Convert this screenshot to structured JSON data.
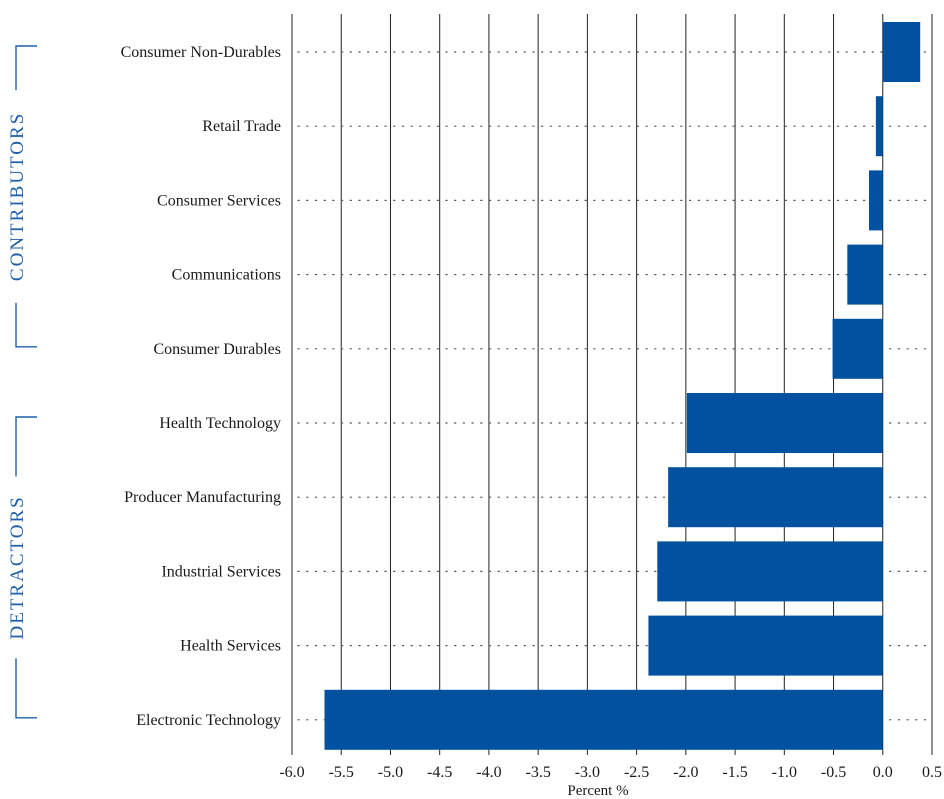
{
  "colors": {
    "bar": "#0052A0",
    "group_label": "#1F5FA8",
    "gridline": "#222222",
    "dotline": "#555555",
    "text": "#1a1a1a"
  },
  "chart_data": {
    "type": "bar",
    "orientation": "horizontal",
    "categories": [
      "Consumer Non-Durables",
      "Retail Trade",
      "Consumer Services",
      "Communications",
      "Consumer Durables",
      "Health Technology",
      "Producer Manufacturing",
      "Industrial Services",
      "Health Services",
      "Electronic Technology"
    ],
    "values": [
      0.38,
      -0.07,
      -0.14,
      -0.36,
      -0.51,
      -1.99,
      -2.18,
      -2.29,
      -2.38,
      -5.67
    ],
    "title": "",
    "xlabel": "Percent %",
    "ylabel": "",
    "xlim": [
      -6.0,
      0.5
    ],
    "xticks": [
      -6.0,
      -5.5,
      -5.0,
      -4.5,
      -4.0,
      -3.5,
      -3.0,
      -2.5,
      -2.0,
      -1.5,
      -1.0,
      -0.5,
      0.0,
      0.5
    ],
    "xtick_labels": [
      "-6.0",
      "-5.5",
      "-5.0",
      "-4.5",
      "-4.0",
      "-3.5",
      "-3.0",
      "-2.5",
      "-2.0",
      "-1.5",
      "-1.0",
      "-0.5",
      "0.0",
      "0.5"
    ],
    "grid": "vertical",
    "groups": [
      {
        "label": "CONTRIBUTORS",
        "first": 0,
        "last": 4
      },
      {
        "label": "DETRACTORS",
        "first": 5,
        "last": 9
      }
    ]
  }
}
